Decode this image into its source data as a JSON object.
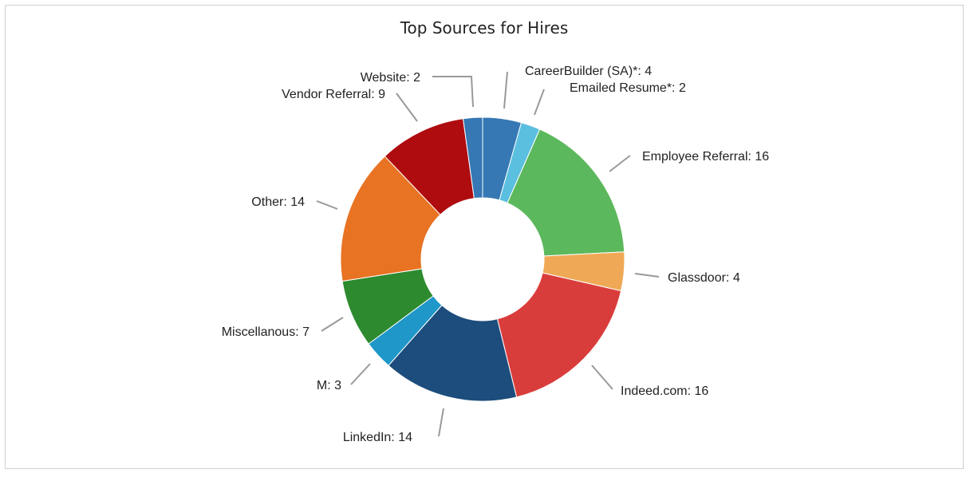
{
  "chart_data": {
    "type": "pie",
    "donut": true,
    "title": "Top Sources for Hires",
    "slices": [
      {
        "label": "CareerBuilder (SA)*",
        "value": 4,
        "color": "#3678b4"
      },
      {
        "label": "Emailed Resume*",
        "value": 2,
        "color": "#5bbfe0"
      },
      {
        "label": "Employee Referral",
        "value": 16,
        "color": "#5cb85c"
      },
      {
        "label": "Glassdoor",
        "value": 4,
        "color": "#efa956"
      },
      {
        "label": "Indeed.com",
        "value": 16,
        "color": "#d93d3b"
      },
      {
        "label": "LinkedIn",
        "value": 14,
        "color": "#1c4d7c"
      },
      {
        "label": "M",
        "value": 3,
        "color": "#1f97c8"
      },
      {
        "label": "Miscellanous",
        "value": 7,
        "color": "#2d8a2f"
      },
      {
        "label": "Other",
        "value": 14,
        "color": "#e87323"
      },
      {
        "label": "Vendor Referral",
        "value": 9,
        "color": "#ae0c0f"
      },
      {
        "label": "Website",
        "value": 2,
        "color": "#3678b4"
      }
    ],
    "slice_labels": [
      "CareerBuilder (SA)*: 4",
      "Emailed Resume*: 2",
      "Employee Referral: 16",
      "Glassdoor: 4",
      "Indeed.com: 16",
      "LinkedIn: 14",
      "M: 3",
      "Miscellanous: 7",
      "Other: 14",
      "Vendor Referral: 9",
      "Website: 2"
    ]
  }
}
